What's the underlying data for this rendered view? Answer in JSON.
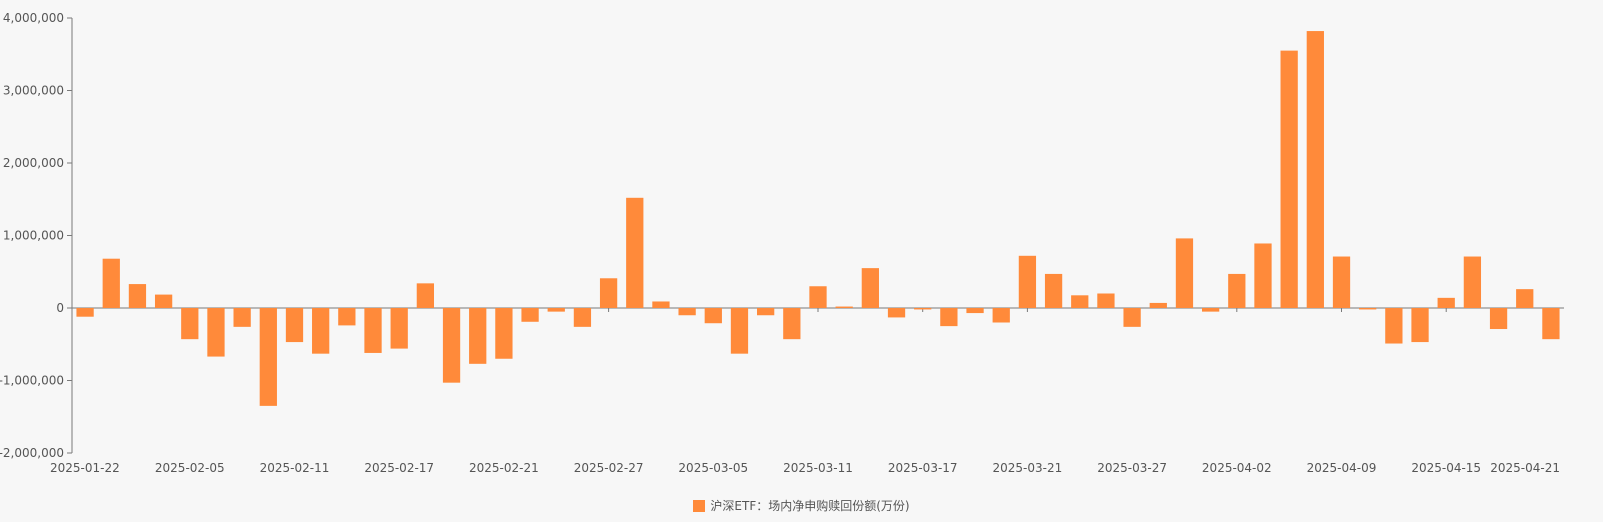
{
  "colors": {
    "bar": "#ff8a3a",
    "axis": "#7a7a7a",
    "text": "#555555",
    "background": "#f7f7f7"
  },
  "chart_data": {
    "type": "bar",
    "title": "",
    "xlabel": "",
    "ylabel": "",
    "ylim": [
      -2000000,
      4000000
    ],
    "y_ticks": [
      4000000,
      3000000,
      2000000,
      1000000,
      0,
      -1000000,
      -2000000
    ],
    "y_tick_labels": [
      "4,000,000",
      "3,000,000",
      "2,000,000",
      "1,000,000",
      "0",
      "-1,000,000",
      "-2,000,000"
    ],
    "x_tick_labels": [
      "2025-01-22",
      "2025-02-05",
      "2025-02-11",
      "2025-02-17",
      "2025-02-21",
      "2025-02-27",
      "2025-03-05",
      "2025-03-11",
      "2025-03-17",
      "2025-03-21",
      "2025-03-27",
      "2025-04-02",
      "2025-04-09",
      "2025-04-15",
      "2025-04-21"
    ],
    "grid": false,
    "legend_position": "bottom-center",
    "categories": [
      "2025-01-22",
      "2025-01-23",
      "2025-01-24",
      "2025-01-27",
      "2025-02-05",
      "2025-02-06",
      "2025-02-07",
      "2025-02-10",
      "2025-02-11",
      "2025-02-12",
      "2025-02-13",
      "2025-02-14",
      "2025-02-17",
      "2025-02-18",
      "2025-02-19",
      "2025-02-20",
      "2025-02-21",
      "2025-02-24",
      "2025-02-25",
      "2025-02-26",
      "2025-02-27",
      "2025-02-28",
      "2025-03-03",
      "2025-03-04",
      "2025-03-05",
      "2025-03-06",
      "2025-03-07",
      "2025-03-10",
      "2025-03-11",
      "2025-03-12",
      "2025-03-13",
      "2025-03-14",
      "2025-03-17",
      "2025-03-18",
      "2025-03-19",
      "2025-03-20",
      "2025-03-21",
      "2025-03-24",
      "2025-03-25",
      "2025-03-26",
      "2025-03-27",
      "2025-03-28",
      "2025-03-31",
      "2025-04-01",
      "2025-04-02",
      "2025-04-03",
      "2025-04-07",
      "2025-04-08",
      "2025-04-09",
      "2025-04-10",
      "2025-04-11",
      "2025-04-14",
      "2025-04-15",
      "2025-04-16",
      "2025-04-17",
      "2025-04-18",
      "2025-04-21"
    ],
    "series": [
      {
        "name": "沪深ETF：场内净申购赎回份额(万份)",
        "values": [
          -120000,
          680000,
          330000,
          185000,
          -430000,
          -670000,
          -260000,
          -1350000,
          -470000,
          -630000,
          -240000,
          -620000,
          -560000,
          340000,
          -1030000,
          -770000,
          -700000,
          -190000,
          -50000,
          -260000,
          410000,
          1520000,
          90000,
          -100000,
          -210000,
          -630000,
          -100000,
          -430000,
          300000,
          20000,
          550000,
          -130000,
          -20000,
          -250000,
          -70000,
          -200000,
          720000,
          470000,
          175000,
          200000,
          -260000,
          70000,
          960000,
          -50000,
          470000,
          890000,
          3550000,
          3820000,
          710000,
          -20000,
          -490000,
          -470000,
          140000,
          710000,
          -290000,
          260000,
          -430000
        ]
      }
    ]
  }
}
